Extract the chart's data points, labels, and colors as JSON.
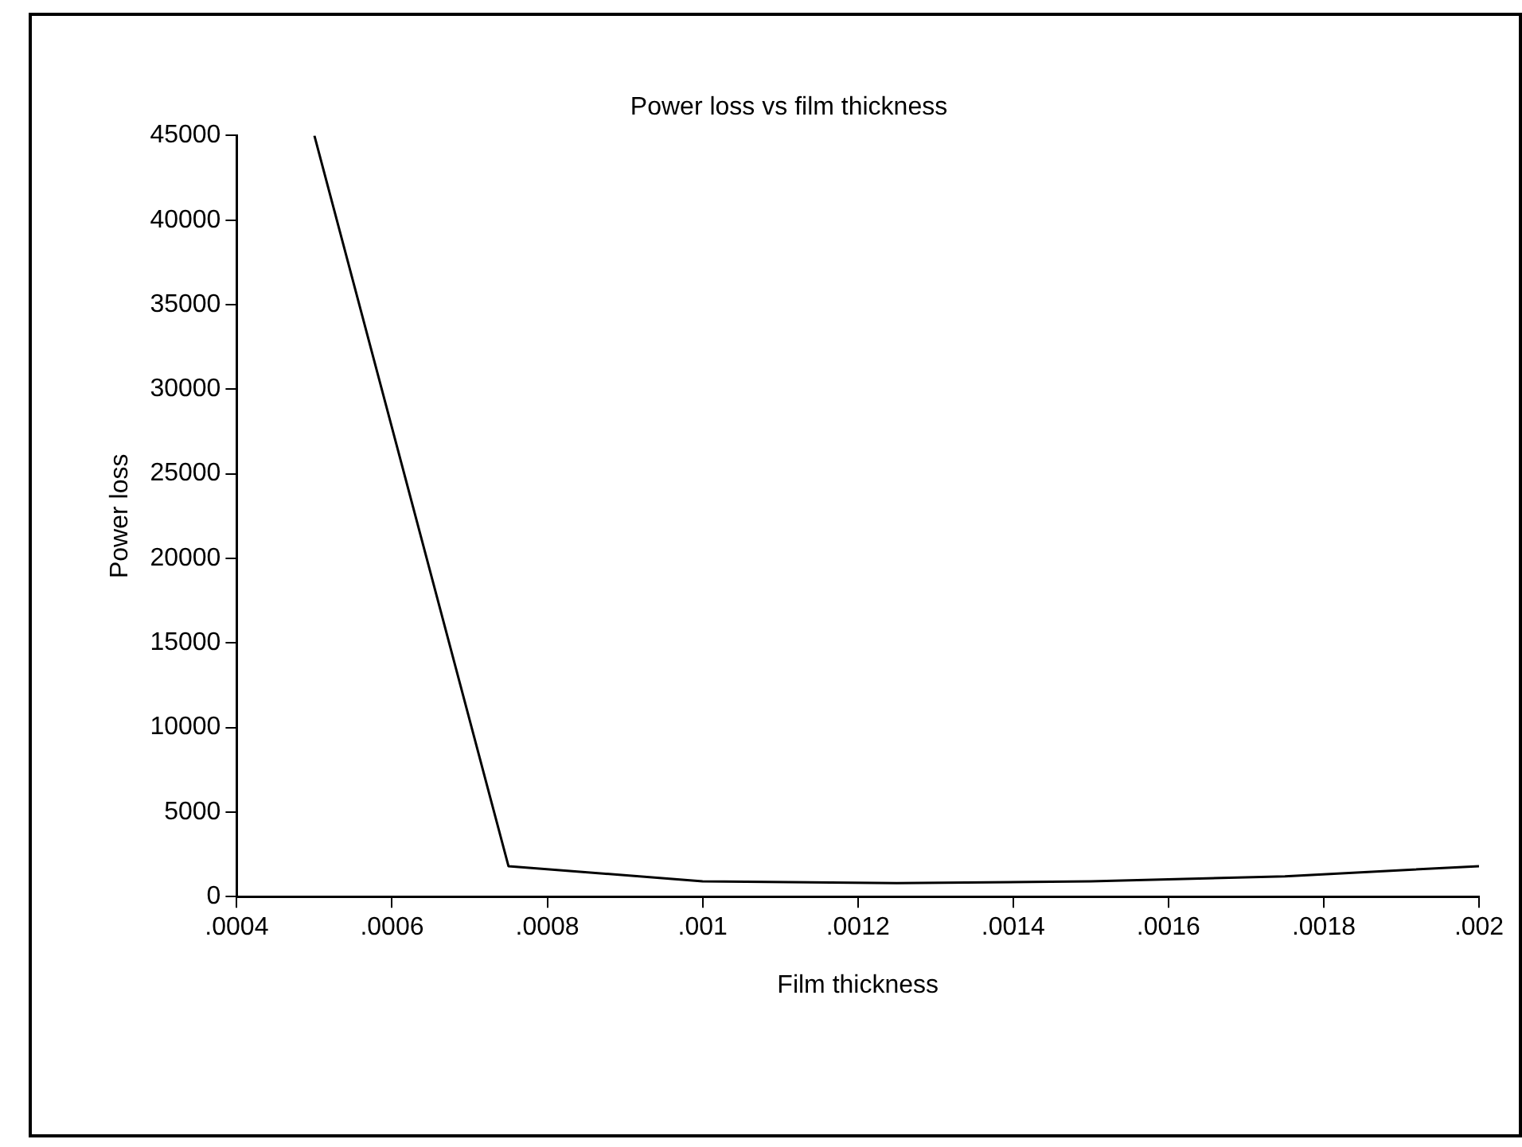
{
  "chart_data": {
    "type": "line",
    "title": "Power loss vs film thickness",
    "xlabel": "Film thickness",
    "ylabel": "Power loss",
    "x": [
      0.0005,
      0.00075,
      0.001,
      0.00125,
      0.0015,
      0.00175,
      0.002
    ],
    "series": [
      {
        "color": "#000000",
        "values": [
          45000,
          1800,
          900,
          800,
          900,
          1200,
          1800
        ]
      }
    ],
    "xlim": [
      0.0004,
      0.002
    ],
    "xticks": [
      {
        "value": 0.0004,
        "label": ".0004"
      },
      {
        "value": 0.0006,
        "label": ".0006"
      },
      {
        "value": 0.0008,
        "label": ".0008"
      },
      {
        "value": 0.001,
        "label": ".001"
      },
      {
        "value": 0.0012,
        "label": ".0012"
      },
      {
        "value": 0.0014,
        "label": ".0014"
      },
      {
        "value": 0.0016,
        "label": ".0016"
      },
      {
        "value": 0.0018,
        "label": ".0018"
      },
      {
        "value": 0.002,
        "label": ".002"
      }
    ],
    "ylim": [
      0,
      45000
    ],
    "yticks": [
      0,
      5000,
      10000,
      15000,
      20000,
      25000,
      30000,
      35000,
      40000,
      45000
    ],
    "grid": false,
    "legend": false,
    "marker": "none",
    "line_style": "solid"
  }
}
